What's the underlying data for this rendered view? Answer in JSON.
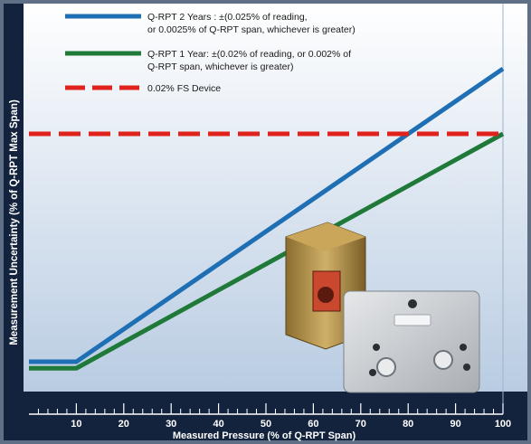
{
  "chart_data": {
    "type": "line",
    "ylabel": "Measurement Uncertainty (% of Q-RPT Max Span)",
    "xlabel": "Measured Pressure (% of Q-RPT Span)",
    "x_ticks": [
      10,
      20,
      30,
      40,
      50,
      60,
      70,
      80,
      90,
      100
    ],
    "xlim": [
      0,
      100
    ],
    "ylim": [
      0,
      0.03
    ],
    "grid": false,
    "legend_position": "top-left",
    "series": [
      {
        "name": "Q-RPT 2 Years : ±(0.025% of reading, or 0.0025% of Q-RPT span, whichever is greater)",
        "color": "#1f6fb5",
        "x": [
          0,
          10,
          100
        ],
        "y": [
          0.0025,
          0.0025,
          0.025
        ]
      },
      {
        "name": "Q-RPT 1 Year: ±(0.02% of reading, or 0.002% of Q-RPT span, whichever is greater)",
        "color": "#1f7a3a",
        "x": [
          0,
          10,
          100
        ],
        "y": [
          0.002,
          0.002,
          0.02
        ]
      },
      {
        "name": "0.02% FS Device",
        "color": "#e0221c",
        "style": "dashed",
        "x": [
          0,
          100
        ],
        "y": [
          0.02,
          0.02
        ]
      }
    ],
    "legend": [
      {
        "lines": [
          "Q-RPT 2 Years : ±(0.025% of reading,",
          "or 0.0025% of Q-RPT span, whichever is greater)"
        ]
      },
      {
        "lines": [
          "Q-RPT 1 Year: ±(0.02% of reading, or 0.002% of",
          "Q-RPT span, whichever is greater)"
        ]
      },
      {
        "lines": [
          "0.02% FS Device"
        ]
      }
    ]
  },
  "colors": {
    "plot_top": "#ffffff",
    "plot_bottom": "#b9cce2",
    "axis_band": "#13233d",
    "frame": "#5f6f86"
  },
  "image": {
    "name": "q-rpt-device-photo"
  }
}
